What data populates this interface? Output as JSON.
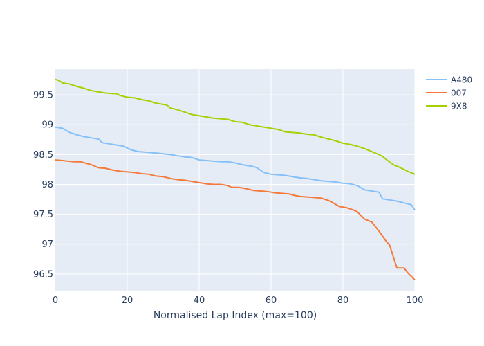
{
  "chart_data": {
    "type": "line",
    "title": "",
    "xlabel": "Normalised Lap Index (max=100)",
    "ylabel": "",
    "xlim": [
      0,
      100
    ],
    "ylim": [
      96.22,
      99.93
    ],
    "x_ticks": [
      0,
      20,
      40,
      60,
      80,
      100
    ],
    "y_ticks": [
      96.5,
      97,
      97.5,
      98,
      98.5,
      99,
      99.5
    ],
    "y_tick_labels": [
      "96.5",
      "97",
      "97.5",
      "98",
      "98.5",
      "99",
      "99.5"
    ],
    "grid": true,
    "legend_position": "top-right",
    "plot_background": "#e5ecf6",
    "series": [
      {
        "name": "A480",
        "color": "#85c0f9",
        "points": [
          [
            0,
            98.96
          ],
          [
            2,
            98.94
          ],
          [
            4,
            98.87
          ],
          [
            6,
            98.83
          ],
          [
            8,
            98.8
          ],
          [
            10,
            98.78
          ],
          [
            12,
            98.76
          ],
          [
            13,
            98.7
          ],
          [
            15,
            98.68
          ],
          [
            17,
            98.66
          ],
          [
            19,
            98.64
          ],
          [
            21,
            98.58
          ],
          [
            23,
            98.55
          ],
          [
            25,
            98.54
          ],
          [
            27,
            98.53
          ],
          [
            29,
            98.52
          ],
          [
            32,
            98.5
          ],
          [
            34,
            98.48
          ],
          [
            36,
            98.46
          ],
          [
            38,
            98.45
          ],
          [
            40,
            98.41
          ],
          [
            42,
            98.4
          ],
          [
            44,
            98.39
          ],
          [
            46,
            98.38
          ],
          [
            48,
            98.38
          ],
          [
            50,
            98.36
          ],
          [
            52,
            98.33
          ],
          [
            54,
            98.31
          ],
          [
            55,
            98.3
          ],
          [
            56,
            98.28
          ],
          [
            58,
            98.2
          ],
          [
            60,
            98.17
          ],
          [
            62,
            98.16
          ],
          [
            64,
            98.15
          ],
          [
            66,
            98.13
          ],
          [
            68,
            98.11
          ],
          [
            70,
            98.1
          ],
          [
            72,
            98.08
          ],
          [
            74,
            98.06
          ],
          [
            76,
            98.05
          ],
          [
            78,
            98.04
          ],
          [
            80,
            98.02
          ],
          [
            82,
            98.01
          ],
          [
            84,
            97.98
          ],
          [
            86,
            97.91
          ],
          [
            88,
            97.89
          ],
          [
            90,
            97.87
          ],
          [
            91,
            97.76
          ],
          [
            93,
            97.74
          ],
          [
            95,
            97.72
          ],
          [
            97,
            97.69
          ],
          [
            99,
            97.66
          ],
          [
            100,
            97.57
          ]
        ]
      },
      {
        "name": "007",
        "color": "#f5793a",
        "points": [
          [
            0,
            98.41
          ],
          [
            2,
            98.4
          ],
          [
            5,
            98.38
          ],
          [
            7,
            98.38
          ],
          [
            10,
            98.33
          ],
          [
            12,
            98.28
          ],
          [
            14,
            98.27
          ],
          [
            16,
            98.24
          ],
          [
            18,
            98.22
          ],
          [
            20,
            98.21
          ],
          [
            22,
            98.2
          ],
          [
            24,
            98.18
          ],
          [
            26,
            98.17
          ],
          [
            28,
            98.14
          ],
          [
            30,
            98.13
          ],
          [
            32,
            98.1
          ],
          [
            34,
            98.08
          ],
          [
            36,
            98.07
          ],
          [
            38,
            98.05
          ],
          [
            40,
            98.03
          ],
          [
            42,
            98.01
          ],
          [
            44,
            98.0
          ],
          [
            46,
            98.0
          ],
          [
            48,
            97.98
          ],
          [
            49,
            97.95
          ],
          [
            51,
            97.95
          ],
          [
            53,
            97.93
          ],
          [
            55,
            97.9
          ],
          [
            57,
            97.89
          ],
          [
            59,
            97.88
          ],
          [
            61,
            97.86
          ],
          [
            63,
            97.85
          ],
          [
            65,
            97.84
          ],
          [
            67,
            97.81
          ],
          [
            68,
            97.8
          ],
          [
            70,
            97.79
          ],
          [
            72,
            97.78
          ],
          [
            74,
            97.77
          ],
          [
            76,
            97.73
          ],
          [
            77,
            97.7
          ],
          [
            79,
            97.63
          ],
          [
            81,
            97.61
          ],
          [
            83,
            97.57
          ],
          [
            84,
            97.54
          ],
          [
            86,
            97.42
          ],
          [
            88,
            97.37
          ],
          [
            90,
            97.22
          ],
          [
            92,
            97.05
          ],
          [
            93,
            96.98
          ],
          [
            95,
            96.6
          ],
          [
            97,
            96.6
          ],
          [
            98,
            96.52
          ],
          [
            100,
            96.4
          ]
        ]
      },
      {
        "name": "9X8",
        "color": "#a4d100",
        "points": [
          [
            0,
            99.76
          ],
          [
            1,
            99.74
          ],
          [
            2,
            99.7
          ],
          [
            4,
            99.68
          ],
          [
            6,
            99.64
          ],
          [
            8,
            99.61
          ],
          [
            10,
            99.57
          ],
          [
            12,
            99.55
          ],
          [
            14,
            99.53
          ],
          [
            16,
            99.52
          ],
          [
            17,
            99.52
          ],
          [
            18,
            99.49
          ],
          [
            20,
            99.46
          ],
          [
            22,
            99.45
          ],
          [
            24,
            99.42
          ],
          [
            26,
            99.4
          ],
          [
            28,
            99.36
          ],
          [
            30,
            99.34
          ],
          [
            31,
            99.33
          ],
          [
            32,
            99.28
          ],
          [
            34,
            99.25
          ],
          [
            36,
            99.21
          ],
          [
            38,
            99.17
          ],
          [
            40,
            99.15
          ],
          [
            42,
            99.13
          ],
          [
            44,
            99.11
          ],
          [
            46,
            99.1
          ],
          [
            48,
            99.09
          ],
          [
            50,
            99.05
          ],
          [
            52,
            99.04
          ],
          [
            54,
            99.0
          ],
          [
            56,
            98.98
          ],
          [
            58,
            98.96
          ],
          [
            60,
            98.94
          ],
          [
            62,
            98.92
          ],
          [
            64,
            98.88
          ],
          [
            66,
            98.87
          ],
          [
            68,
            98.86
          ],
          [
            70,
            98.84
          ],
          [
            72,
            98.83
          ],
          [
            74,
            98.79
          ],
          [
            76,
            98.76
          ],
          [
            78,
            98.73
          ],
          [
            80,
            98.69
          ],
          [
            82,
            98.67
          ],
          [
            84,
            98.64
          ],
          [
            86,
            98.6
          ],
          [
            88,
            98.55
          ],
          [
            90,
            98.5
          ],
          [
            91,
            98.47
          ],
          [
            92,
            98.42
          ],
          [
            94,
            98.33
          ],
          [
            96,
            98.28
          ],
          [
            98,
            98.22
          ],
          [
            100,
            98.17
          ]
        ]
      }
    ]
  }
}
